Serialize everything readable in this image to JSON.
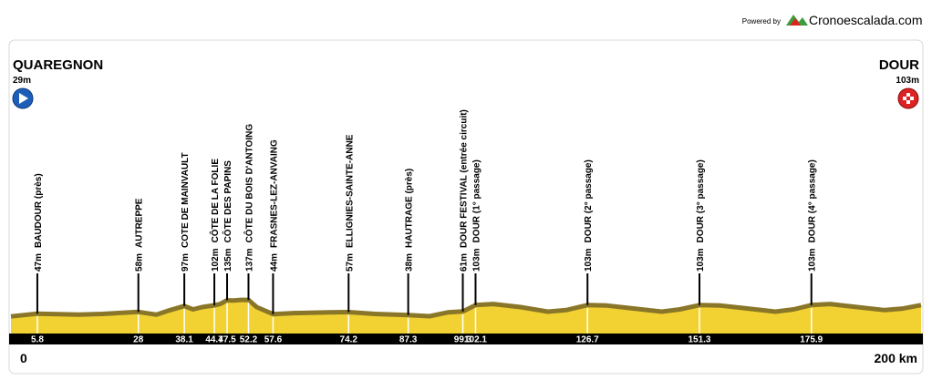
{
  "header": {
    "powered": "Powered by",
    "brand": "Cronoescalada.com"
  },
  "chart_data": {
    "type": "elevation-profile",
    "start": {
      "name": "QUAREGNON",
      "altitude": 29,
      "altitude_label": "29m"
    },
    "end": {
      "name": "DOUR",
      "altitude": 103,
      "altitude_label": "103m"
    },
    "xlim": [
      0,
      200
    ],
    "xticks": [
      0,
      {
        "value": 200,
        "label": "200 km"
      }
    ],
    "ylim": [
      0,
      2000
    ],
    "profile": {
      "x": [
        0,
        5.8,
        15,
        20,
        28,
        32,
        35,
        38.1,
        40,
        42,
        44.7,
        46,
        47.5,
        49,
        50.5,
        52.2,
        54,
        57.6,
        62,
        70,
        74.2,
        80,
        87.3,
        92,
        96,
        99.3,
        102.1,
        106,
        112,
        118,
        122,
        126.7,
        131,
        137,
        143,
        147,
        151.3,
        156,
        162,
        168,
        172,
        175.9,
        180,
        186,
        192,
        196,
        200
      ],
      "values": [
        29,
        47,
        40,
        45,
        58,
        40,
        70,
        97,
        75,
        90,
        102,
        110,
        135,
        133,
        137,
        137,
        90,
        44,
        50,
        55,
        57,
        45,
        38,
        30,
        55,
        61,
        103,
        110,
        90,
        60,
        70,
        103,
        100,
        80,
        60,
        75,
        103,
        100,
        80,
        60,
        75,
        103,
        110,
        90,
        70,
        80,
        103
      ]
    },
    "points": {
      "x": [
        5.8,
        28,
        38.1,
        44.7,
        47.5,
        52.2,
        57.6,
        74.2,
        87.3,
        99.3,
        102.1,
        126.7,
        151.3,
        175.9
      ],
      "values": [
        47,
        58,
        97,
        102,
        135,
        137,
        44,
        57,
        38,
        61,
        103,
        103,
        103,
        103
      ],
      "value_labels": [
        "47m",
        "58m",
        "97m",
        "102m",
        "135m",
        "137m",
        "44m",
        "57m",
        "38m",
        "61m",
        "103m",
        "103m",
        "103m",
        "103m"
      ],
      "names": [
        "BAUDOUR (près)",
        "AUTREPPE",
        "COTE DE MAINVAULT",
        "CÔTE DE LA FOLIE",
        "CÔTE DES PAPINS",
        "CÔTE DU BOIS D'ANTOING",
        "FRASNES-LEZ-ANVAING",
        "ELLIGNIES-SAINTE-ANNE",
        "HAUTRAGE (près)",
        "DOUR FESTIVAL (entrée circuit)",
        "DOUR (1° passage)",
        "DOUR (2° passage)",
        "DOUR (3° passage)",
        "DOUR (4° passage)"
      ]
    },
    "colors": {
      "fill": "#f2d232",
      "ridge": "#8a7628",
      "bar": "#000000"
    }
  }
}
